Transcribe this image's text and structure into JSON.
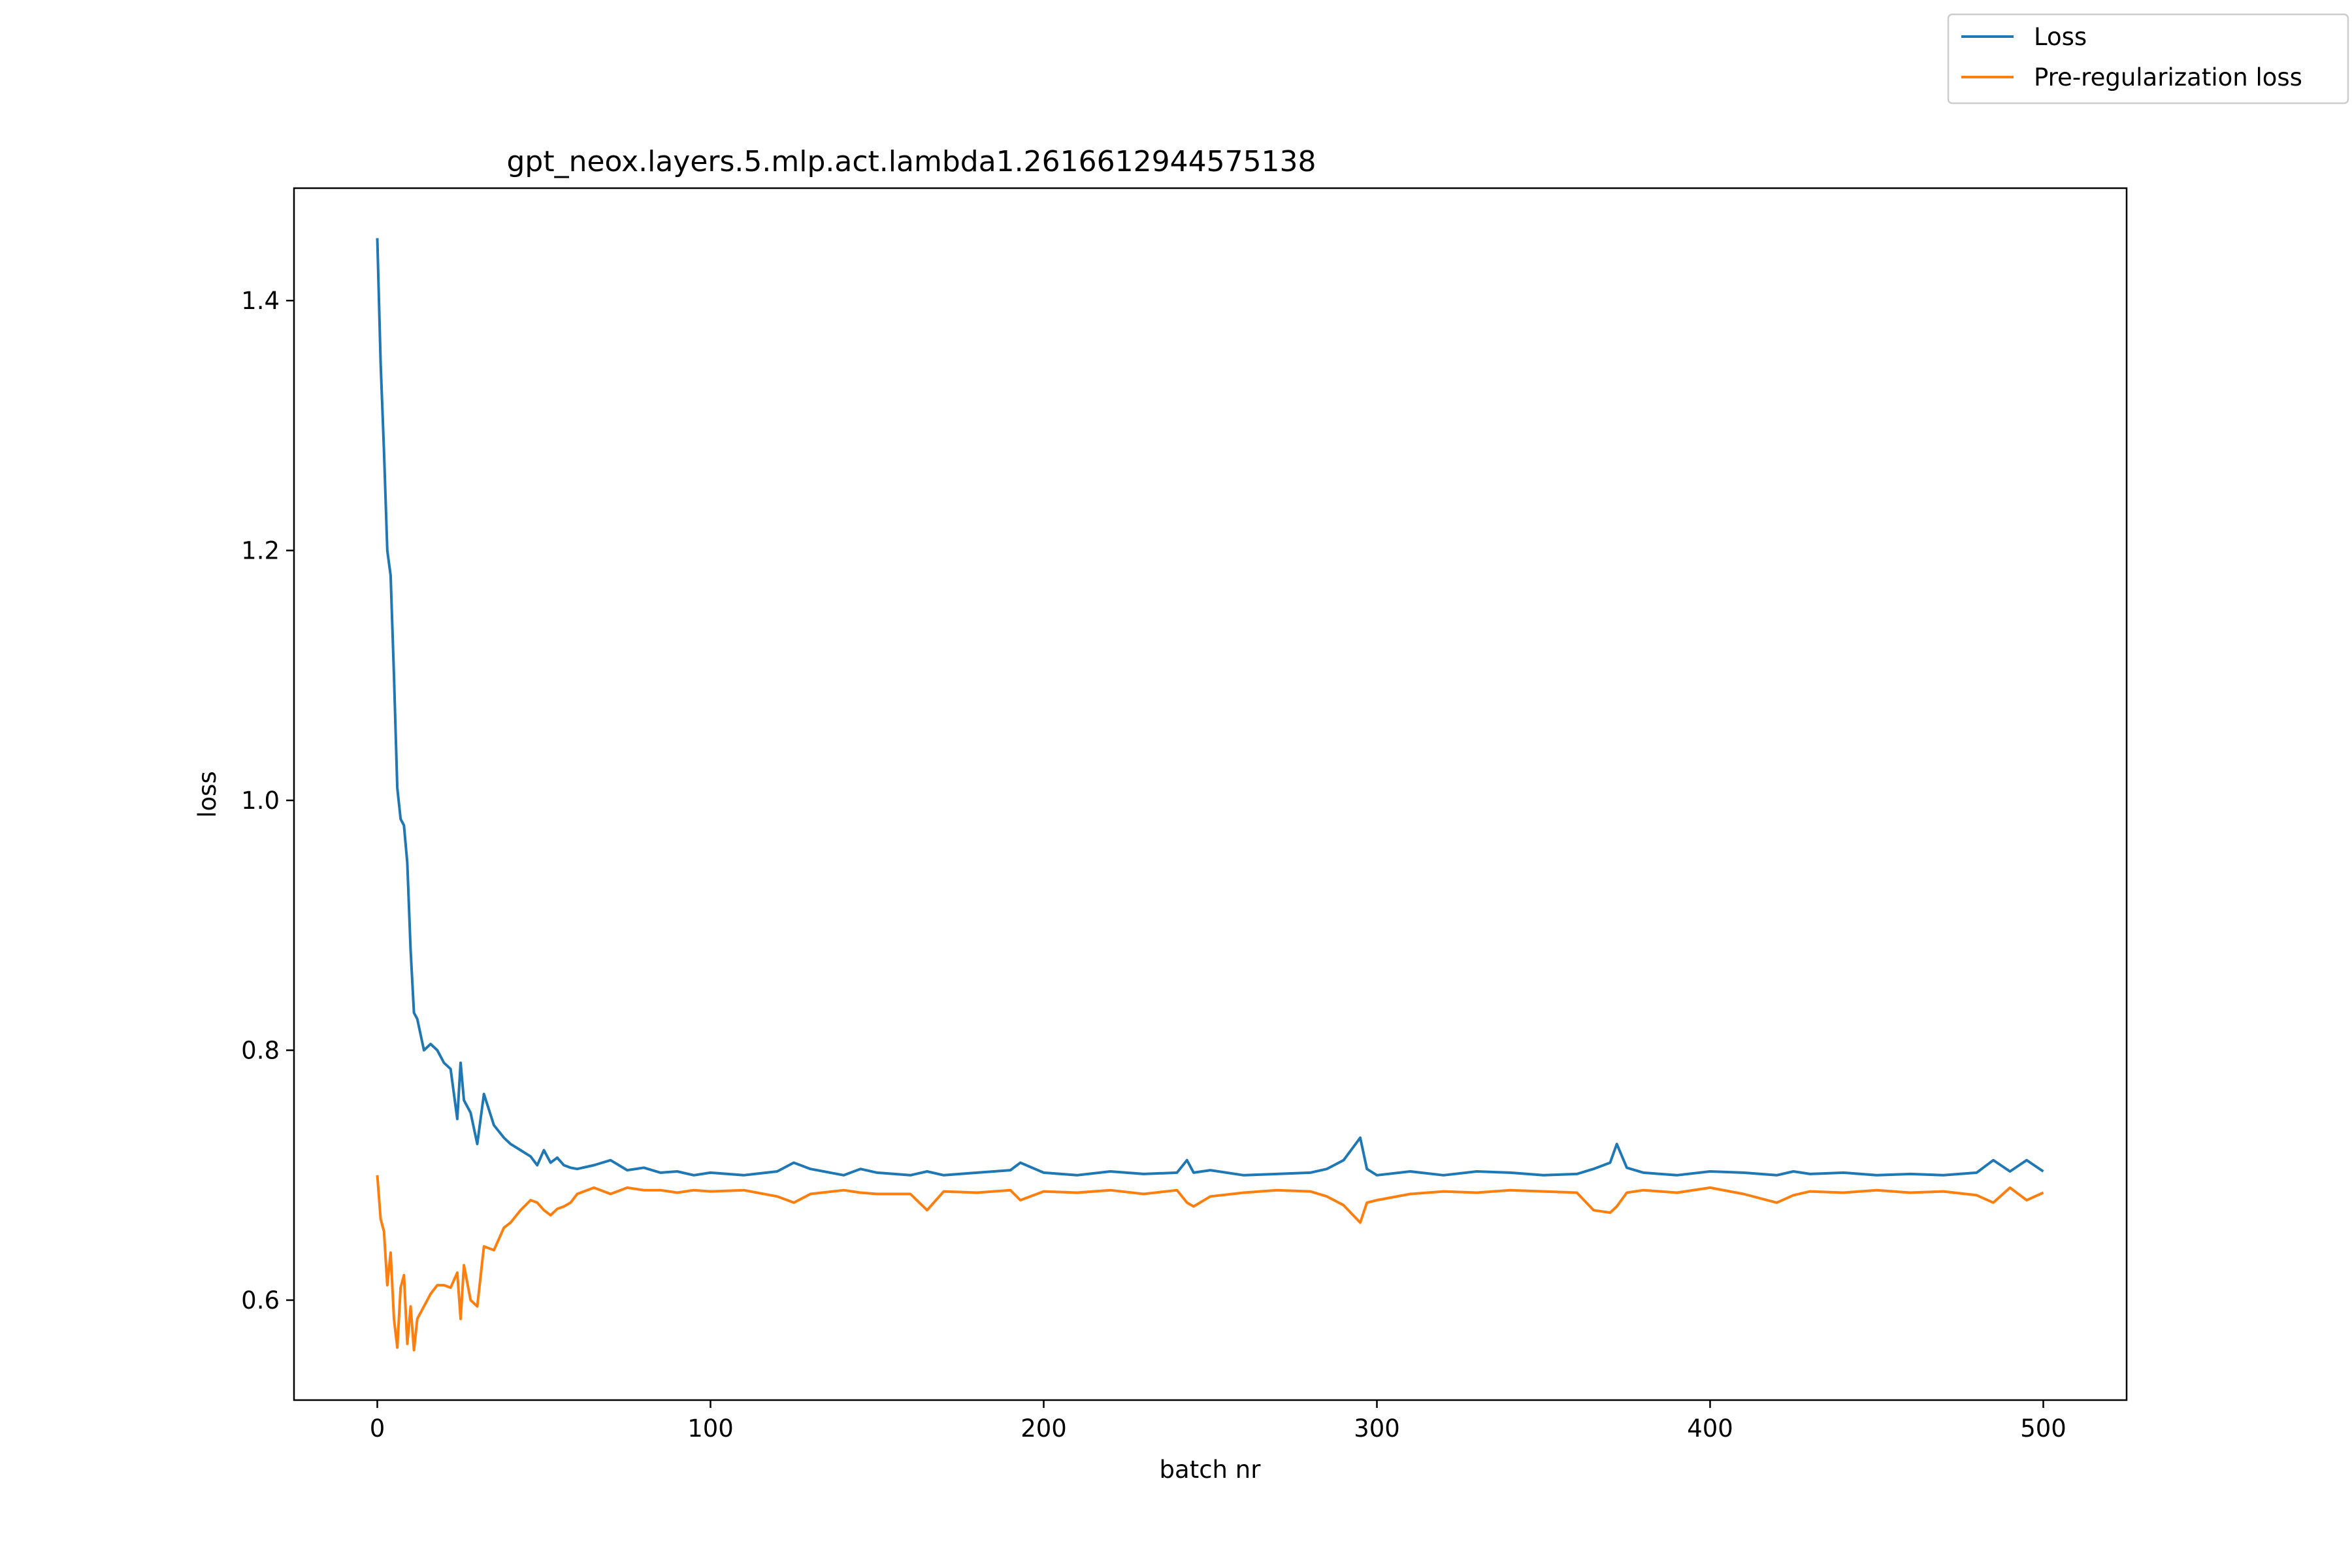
{
  "chart_data": {
    "type": "line",
    "title": "gpt_neox.layers.5.mlp.act.lambda1.2616612944575138",
    "xlabel": "batch nr",
    "ylabel": "loss",
    "xlim": [
      -25,
      525
    ],
    "ylim": [
      0.52,
      1.49
    ],
    "xticks": [
      0,
      100,
      200,
      300,
      400,
      500
    ],
    "xtick_labels": [
      "0",
      "100",
      "200",
      "300",
      "400",
      "500"
    ],
    "yticks": [
      0.6,
      0.8,
      1.0,
      1.2,
      1.4
    ],
    "ytick_labels": [
      "0.6",
      "0.8",
      "1.0",
      "1.2",
      "1.4"
    ],
    "grid": false,
    "legend_position": "top-right (outside plot)",
    "x": [
      0,
      1,
      2,
      3,
      4,
      5,
      6,
      7,
      8,
      9,
      10,
      11,
      12,
      14,
      16,
      18,
      20,
      22,
      24,
      25,
      26,
      28,
      30,
      32,
      35,
      38,
      40,
      43,
      46,
      48,
      50,
      52,
      54,
      56,
      58,
      60,
      65,
      70,
      75,
      80,
      85,
      90,
      95,
      100,
      110,
      120,
      125,
      130,
      140,
      145,
      150,
      160,
      165,
      170,
      180,
      190,
      193,
      200,
      210,
      220,
      230,
      240,
      243,
      245,
      250,
      260,
      270,
      280,
      285,
      290,
      295,
      297,
      300,
      310,
      320,
      330,
      340,
      350,
      360,
      365,
      370,
      372,
      375,
      380,
      390,
      400,
      410,
      420,
      425,
      430,
      440,
      450,
      460,
      470,
      480,
      485,
      490,
      495,
      500
    ],
    "series": [
      {
        "name": "Loss",
        "color": "#1f77b4",
        "values": [
          1.45,
          1.35,
          1.28,
          1.2,
          1.18,
          1.1,
          1.01,
          0.985,
          0.98,
          0.95,
          0.88,
          0.83,
          0.825,
          0.8,
          0.805,
          0.8,
          0.79,
          0.785,
          0.745,
          0.79,
          0.76,
          0.75,
          0.725,
          0.765,
          0.74,
          0.73,
          0.725,
          0.72,
          0.715,
          0.708,
          0.72,
          0.71,
          0.714,
          0.708,
          0.706,
          0.705,
          0.708,
          0.712,
          0.704,
          0.706,
          0.702,
          0.703,
          0.7,
          0.702,
          0.7,
          0.703,
          0.71,
          0.705,
          0.7,
          0.705,
          0.702,
          0.7,
          0.703,
          0.7,
          0.702,
          0.704,
          0.71,
          0.702,
          0.7,
          0.703,
          0.701,
          0.702,
          0.712,
          0.702,
          0.704,
          0.7,
          0.701,
          0.702,
          0.705,
          0.712,
          0.73,
          0.705,
          0.7,
          0.703,
          0.7,
          0.703,
          0.702,
          0.7,
          0.701,
          0.705,
          0.71,
          0.725,
          0.706,
          0.702,
          0.7,
          0.703,
          0.702,
          0.7,
          0.703,
          0.701,
          0.702,
          0.7,
          0.701,
          0.7,
          0.702,
          0.712,
          0.703,
          0.712,
          0.703
        ]
      },
      {
        "name": "Pre-regularization loss",
        "color": "#ff7f0e",
        "values": [
          0.7,
          0.665,
          0.655,
          0.612,
          0.638,
          0.585,
          0.562,
          0.61,
          0.62,
          0.565,
          0.595,
          0.56,
          0.585,
          0.595,
          0.605,
          0.612,
          0.612,
          0.61,
          0.622,
          0.585,
          0.628,
          0.6,
          0.595,
          0.643,
          0.64,
          0.658,
          0.662,
          0.672,
          0.68,
          0.678,
          0.672,
          0.668,
          0.673,
          0.675,
          0.678,
          0.685,
          0.69,
          0.685,
          0.69,
          0.688,
          0.688,
          0.686,
          0.688,
          0.687,
          0.688,
          0.683,
          0.678,
          0.685,
          0.688,
          0.686,
          0.685,
          0.685,
          0.672,
          0.687,
          0.686,
          0.688,
          0.68,
          0.687,
          0.686,
          0.688,
          0.685,
          0.688,
          0.678,
          0.675,
          0.683,
          0.686,
          0.688,
          0.687,
          0.683,
          0.676,
          0.662,
          0.678,
          0.68,
          0.685,
          0.687,
          0.686,
          0.688,
          0.687,
          0.686,
          0.672,
          0.67,
          0.675,
          0.686,
          0.688,
          0.686,
          0.69,
          0.685,
          0.678,
          0.684,
          0.687,
          0.686,
          0.688,
          0.686,
          0.687,
          0.684,
          0.678,
          0.69,
          0.68,
          0.686
        ]
      }
    ]
  }
}
